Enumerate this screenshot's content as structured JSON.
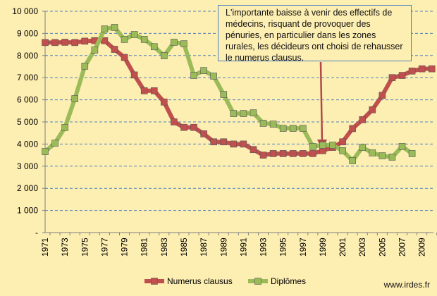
{
  "chart_data": {
    "type": "line",
    "title": "",
    "xlabel": "",
    "ylabel": "",
    "ylim": [
      0,
      10000
    ],
    "yticks": [
      0,
      1000,
      2000,
      3000,
      4000,
      5000,
      6000,
      7000,
      8000,
      9000,
      10000
    ],
    "ytick_labels": [
      "-",
      "1 000",
      "2 000",
      "3 000",
      "4 000",
      "5 000",
      "6 000",
      "7 000",
      "8 000",
      "9 000",
      "10 000"
    ],
    "x": [
      1971,
      1972,
      1973,
      1974,
      1975,
      1976,
      1977,
      1978,
      1979,
      1980,
      1981,
      1982,
      1983,
      1984,
      1985,
      1986,
      1987,
      1988,
      1989,
      1990,
      1991,
      1992,
      1993,
      1994,
      1995,
      1996,
      1997,
      1998,
      1999,
      2000,
      2001,
      2002,
      2003,
      2004,
      2005,
      2006,
      2007,
      2008,
      2009,
      2010
    ],
    "xtick_labels": [
      "1971",
      "1973",
      "1975",
      "1977",
      "1979",
      "1981",
      "1983",
      "1985",
      "1987",
      "1989",
      "1991",
      "1993",
      "1995",
      "1997",
      "1999",
      "2001",
      "2003",
      "2005",
      "2007",
      "2009"
    ],
    "grid": "horizontal dashed",
    "legend": "bottom",
    "series": [
      {
        "name": "Numerus clausus",
        "color": "#c0504d",
        "values": [
          8588,
          8588,
          8600,
          8588,
          8650,
          8672,
          8671,
          8280,
          7913,
          7121,
          6409,
          6409,
          5900,
          5000,
          4754,
          4754,
          4460,
          4100,
          4100,
          4000,
          4000,
          3750,
          3500,
          3570,
          3570,
          3570,
          3570,
          3570,
          3700,
          3850,
          4100,
          4700,
          5100,
          5550,
          6200,
          7000,
          7100,
          7300,
          7400,
          7400
        ]
      },
      {
        "name": "Diplômes",
        "color": "#9bbb59",
        "values": [
          3660,
          4040,
          4750,
          6050,
          7520,
          8250,
          9200,
          9270,
          8730,
          8950,
          8730,
          8400,
          7990,
          8600,
          8530,
          7100,
          7320,
          7070,
          6240,
          5380,
          5380,
          5410,
          4940,
          4900,
          4710,
          4710,
          4710,
          3890,
          3950,
          3950,
          3700,
          3250,
          3850,
          3600,
          3470,
          3410,
          3890,
          3570,
          null,
          null
        ]
      }
    ],
    "annotation": "L'importante baisse à venir des effectifs de médecins, risquant de provoquer des pénuries, en particulier dans les zones rurales, les décideurs ont choisi de rehausser le numerus  clausus.",
    "annotation_points_to": 1999
  },
  "source": "www.irdes.fr"
}
